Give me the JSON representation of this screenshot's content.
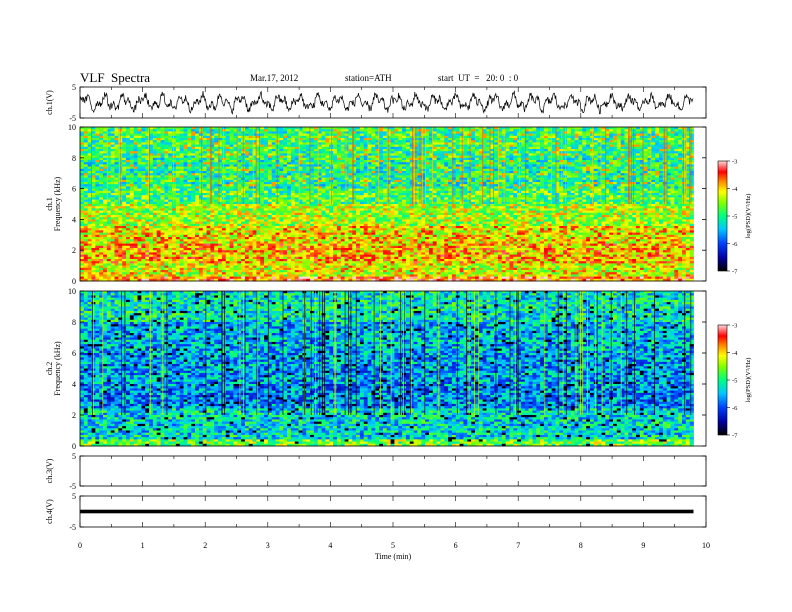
{
  "header": {
    "title": "VLF  Spectra",
    "date": "Mar.17, 2012",
    "station": "station=ATH",
    "start": "start  UT  =   20: 0  : 0"
  },
  "chart_data": [
    {
      "type": "line",
      "ylabel": "ch.1(V)",
      "yticks": [
        "5",
        "-5"
      ],
      "ylim": [
        -5,
        5
      ],
      "xlim": [
        0,
        10
      ],
      "description_of_signal": "noisy waveform oscillating roughly between -3 and 3 V over 0-9.8 min",
      "color": "#000000"
    },
    {
      "type": "heatmap",
      "ylabel_ch": "ch.1",
      "ylabel": "Frequency  (kHz)",
      "yticks": [
        "10",
        "8",
        "6",
        "4",
        "2",
        "0"
      ],
      "ylim": [
        0,
        10
      ],
      "xlim": [
        0,
        10
      ],
      "data_xmax": 9.8,
      "colorbar": {
        "label": "log(PSD)(V²/Hz)",
        "ticks": [
          "-3",
          "-4",
          "-5",
          "-6",
          "-7"
        ],
        "range": [
          -7,
          -3
        ]
      },
      "color_bands_khz": [
        {
          "from": 0,
          "to": 0.3,
          "level": -3.6
        },
        {
          "from": 0.3,
          "to": 1.2,
          "level": -4.2
        },
        {
          "from": 1.2,
          "to": 2.4,
          "level": -3.9
        },
        {
          "from": 2.4,
          "to": 3.6,
          "level": -4.1
        },
        {
          "from": 3.6,
          "to": 5.0,
          "level": -4.4
        },
        {
          "from": 5.0,
          "to": 6.0,
          "level": -4.8
        },
        {
          "from": 6.0,
          "to": 8.0,
          "level": -5.0
        },
        {
          "from": 8.0,
          "to": 10.0,
          "level": -4.9
        }
      ]
    },
    {
      "type": "heatmap",
      "ylabel_ch": "ch.2",
      "ylabel": "Frequency  (kHz)",
      "yticks": [
        "10",
        "8",
        "6",
        "4",
        "2",
        "0"
      ],
      "ylim": [
        0,
        10
      ],
      "xlim": [
        0,
        10
      ],
      "data_xmax": 9.8,
      "colorbar": {
        "label": "log(PSD)(V²/Hz)",
        "ticks": [
          "-3",
          "-4",
          "-5",
          "-6",
          "-7"
        ],
        "range": [
          -7,
          -3
        ]
      },
      "color_bands_khz": [
        {
          "from": 0,
          "to": 0.5,
          "level": -4.6
        },
        {
          "from": 0.5,
          "to": 2.5,
          "level": -5.3
        },
        {
          "from": 2.5,
          "to": 4.0,
          "level": -5.7
        },
        {
          "from": 4.0,
          "to": 6.0,
          "level": -5.6
        },
        {
          "from": 6.0,
          "to": 8.0,
          "level": -5.5
        },
        {
          "from": 8.0,
          "to": 10.0,
          "level": -5.2
        }
      ]
    },
    {
      "type": "line",
      "ylabel": "ch.3(V)",
      "yticks": [
        "5",
        "-5"
      ],
      "ylim": [
        -5,
        5
      ],
      "xlim": [
        0,
        10
      ],
      "color": "#000000"
    },
    {
      "type": "line",
      "ylabel": "ch.4(V)",
      "yticks": [
        "5",
        "-5"
      ],
      "ylim": [
        -5,
        5
      ],
      "xlim": [
        0,
        10
      ],
      "level": 0,
      "color": "#000000"
    }
  ],
  "xaxis": {
    "label": "Time  (min)",
    "ticks": [
      "0",
      "1",
      "2",
      "3",
      "4",
      "5",
      "6",
      "7",
      "8",
      "9",
      "10"
    ],
    "range": [
      0,
      10
    ]
  }
}
